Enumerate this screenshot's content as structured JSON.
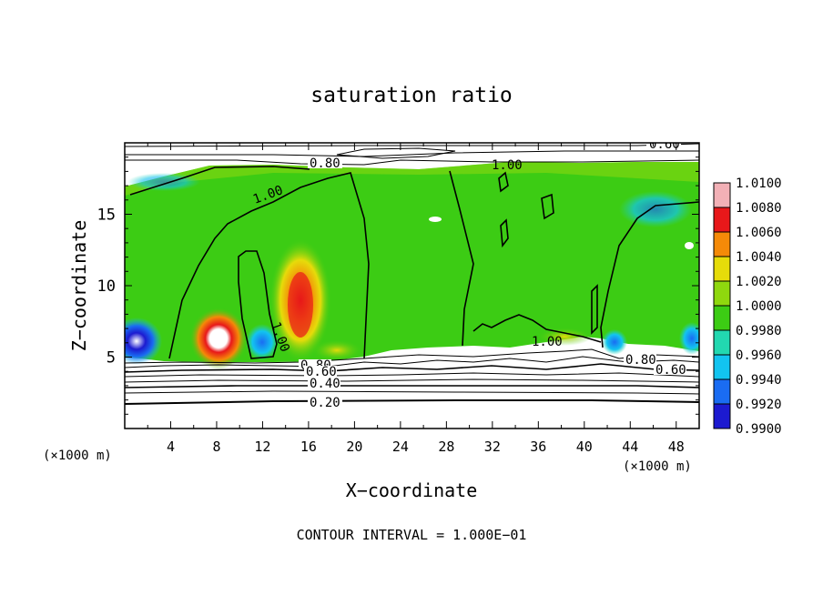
{
  "chart_data": {
    "type": "heatmap",
    "title": "saturation ratio",
    "xlabel": "X−coordinate",
    "ylabel": "Z−coordinate",
    "x_unit_left": "(×1000 m)",
    "x_unit_right": "(×1000 m)",
    "xlim": [
      0,
      50
    ],
    "ylim": [
      0,
      20
    ],
    "x_ticks": [
      4,
      8,
      12,
      16,
      20,
      24,
      28,
      32,
      36,
      40,
      44,
      48
    ],
    "x_tick_labels": [
      "4",
      "8",
      "12",
      "16",
      "20",
      "24",
      "28",
      "32",
      "36",
      "40",
      "44",
      "48"
    ],
    "y_ticks": [
      5,
      10,
      15
    ],
    "y_tick_labels": [
      "5",
      "10",
      "15"
    ],
    "colorbar": {
      "range": [
        0.99,
        1.01
      ],
      "tick_values": [
        0.99,
        0.992,
        0.994,
        0.996,
        0.998,
        1.0,
        1.002,
        1.004,
        1.006,
        1.008,
        1.01
      ],
      "tick_labels": [
        "0.9900",
        "0.9920",
        "0.9940",
        "0.9960",
        "0.9980",
        "1.0000",
        "1.0020",
        "1.0040",
        "1.0060",
        "1.0080",
        "1.0100"
      ],
      "colors": [
        "#5a0e8c",
        "#1c1ad0",
        "#1a6cf2",
        "#12c4f0",
        "#22d8b0",
        "#3ccc14",
        "#8fd80e",
        "#e6dc0a",
        "#f58a08",
        "#e8181a",
        "#f2b0b6"
      ]
    },
    "contour_interval_text": "CONTOUR INTERVAL = 1.000E−01",
    "contour_labels": [
      "0.60",
      "0.80",
      "1.00",
      "1.00",
      "1.00",
      "1.00",
      "0.80",
      "0.60",
      "0.80",
      "0.60",
      "0.40",
      "0.20"
    ],
    "regions": [
      {
        "feature": "lower subsaturated layer",
        "z_range": [
          0,
          5
        ],
        "value_min": 0.1,
        "value_max": 0.9
      },
      {
        "feature": "cloud layer near saturation",
        "z_range": [
          5,
          18.5
        ],
        "value": 1.0
      },
      {
        "feature": "supersaturated updraft core",
        "x": 15.5,
        "z": 9.5,
        "value": 1.006
      },
      {
        "feature": "supersaturated updraft core",
        "x": 8,
        "z": 6,
        "value": 1.01
      },
      {
        "feature": "subsaturated pocket",
        "x": 0.5,
        "z": 6,
        "value": 0.992
      },
      {
        "feature": "upper dry layer",
        "z_range": [
          18.5,
          20
        ],
        "value_min": 0.6,
        "value_max": 0.8
      }
    ]
  }
}
